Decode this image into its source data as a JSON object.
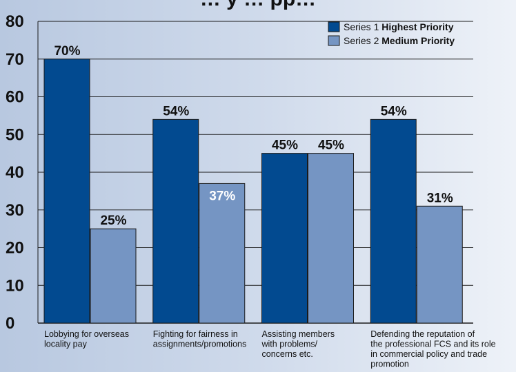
{
  "chart_data": {
    "type": "bar",
    "title": "… y … pp…",
    "categories": [
      [
        "Lobbying for overseas",
        "locality pay"
      ],
      [
        "Fighting for fairness in",
        "assignments/promotions"
      ],
      [
        "Assisting members",
        "with problems/",
        "concerns etc."
      ],
      [
        "Defending the reputation of",
        "the professional FCS and its role",
        "in commercial policy and trade",
        "promotion"
      ]
    ],
    "series": [
      {
        "name": "Series 1",
        "name_bold": "Highest Priority",
        "values": [
          70,
          54,
          45,
          54
        ],
        "labels": [
          "70%",
          "54%",
          "45%",
          "54%"
        ],
        "color": "#024a90",
        "label_color": "#111111"
      },
      {
        "name": "Series 2",
        "name_bold": "Medium Priority",
        "values": [
          25,
          37,
          45,
          31
        ],
        "labels": [
          "25%",
          "37%",
          "45%",
          "31%"
        ],
        "color": "#7595c3",
        "label_color": "#111111",
        "inside_label_color": "#ffffff"
      }
    ],
    "ylim": [
      0,
      80
    ],
    "yticks": [
      0,
      10,
      20,
      30,
      40,
      50,
      60,
      70,
      80
    ],
    "grid": true,
    "legend_position": "top-right"
  }
}
